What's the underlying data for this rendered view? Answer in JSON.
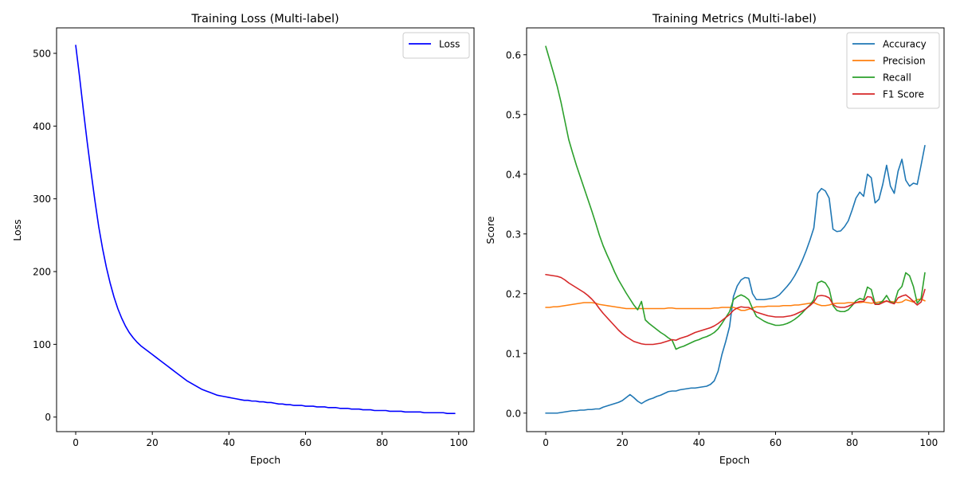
{
  "chart_data": [
    {
      "type": "line",
      "title": "Training Loss (Multi-label)",
      "xlabel": "Epoch",
      "ylabel": "Loss",
      "xlim": [
        -5,
        104
      ],
      "ylim": [
        -20,
        535
      ],
      "xticks": [
        0,
        20,
        40,
        60,
        80,
        100
      ],
      "yticks": [
        0,
        100,
        200,
        300,
        400,
        500
      ],
      "legend": "top-right",
      "grid": false,
      "x": [
        0,
        1,
        2,
        3,
        4,
        5,
        6,
        7,
        8,
        9,
        10,
        11,
        12,
        13,
        14,
        15,
        16,
        17,
        18,
        19,
        20,
        21,
        22,
        23,
        24,
        25,
        26,
        27,
        28,
        29,
        30,
        31,
        32,
        33,
        34,
        35,
        36,
        37,
        38,
        39,
        40,
        41,
        42,
        43,
        44,
        45,
        46,
        47,
        48,
        49,
        50,
        51,
        52,
        53,
        54,
        55,
        56,
        57,
        58,
        59,
        60,
        61,
        62,
        63,
        64,
        65,
        66,
        67,
        68,
        69,
        70,
        71,
        72,
        73,
        74,
        75,
        76,
        77,
        78,
        79,
        80,
        81,
        82,
        83,
        84,
        85,
        86,
        87,
        88,
        89,
        90,
        91,
        92,
        93,
        94,
        95,
        96,
        97,
        98,
        99
      ],
      "series": [
        {
          "name": "Loss",
          "color": "#0000ff",
          "values": [
            511,
            468,
            422,
            378,
            337,
            298,
            262,
            232,
            206,
            184,
            165,
            149,
            136,
            125,
            116,
            109,
            103,
            98,
            94,
            90,
            86,
            82,
            78,
            74,
            70,
            66,
            62,
            58,
            54,
            50,
            47,
            44,
            41,
            38,
            36,
            34,
            32,
            30,
            29,
            28,
            27,
            26,
            25,
            24,
            23,
            23,
            22,
            22,
            21,
            21,
            20,
            20,
            19,
            18,
            18,
            17,
            17,
            16,
            16,
            16,
            15,
            15,
            15,
            14,
            14,
            14,
            13,
            13,
            13,
            12,
            12,
            12,
            11,
            11,
            11,
            10,
            10,
            10,
            9,
            9,
            9,
            9,
            8,
            8,
            8,
            8,
            7,
            7,
            7,
            7,
            7,
            6,
            6,
            6,
            6,
            6,
            6,
            5,
            5,
            5
          ]
        }
      ]
    },
    {
      "type": "line",
      "title": "Training Metrics (Multi-label)",
      "xlabel": "Epoch",
      "ylabel": "Score",
      "xlim": [
        -5,
        104
      ],
      "ylim": [
        -0.031,
        0.645
      ],
      "xticks": [
        0,
        20,
        40,
        60,
        80,
        100
      ],
      "yticks": [
        "0.0",
        "0.1",
        "0.2",
        "0.3",
        "0.4",
        "0.5",
        "0.6"
      ],
      "legend": "top-right",
      "grid": false,
      "x": [
        0,
        1,
        2,
        3,
        4,
        5,
        6,
        7,
        8,
        9,
        10,
        11,
        12,
        13,
        14,
        15,
        16,
        17,
        18,
        19,
        20,
        21,
        22,
        23,
        24,
        25,
        26,
        27,
        28,
        29,
        30,
        31,
        32,
        33,
        34,
        35,
        36,
        37,
        38,
        39,
        40,
        41,
        42,
        43,
        44,
        45,
        46,
        47,
        48,
        49,
        50,
        51,
        52,
        53,
        54,
        55,
        56,
        57,
        58,
        59,
        60,
        61,
        62,
        63,
        64,
        65,
        66,
        67,
        68,
        69,
        70,
        71,
        72,
        73,
        74,
        75,
        76,
        77,
        78,
        79,
        80,
        81,
        82,
        83,
        84,
        85,
        86,
        87,
        88,
        89,
        90,
        91,
        92,
        93,
        94,
        95,
        96,
        97,
        98,
        99
      ],
      "series": [
        {
          "name": "Accuracy",
          "color": "#1f77b4",
          "values": [
            0.0,
            0.0,
            0.0,
            0.0,
            0.001,
            0.002,
            0.003,
            0.004,
            0.004,
            0.005,
            0.005,
            0.006,
            0.006,
            0.007,
            0.007,
            0.01,
            0.012,
            0.014,
            0.016,
            0.018,
            0.021,
            0.026,
            0.031,
            0.026,
            0.02,
            0.016,
            0.02,
            0.023,
            0.025,
            0.028,
            0.03,
            0.033,
            0.036,
            0.037,
            0.037,
            0.039,
            0.04,
            0.041,
            0.042,
            0.042,
            0.043,
            0.044,
            0.045,
            0.048,
            0.054,
            0.07,
            0.098,
            0.12,
            0.145,
            0.195,
            0.213,
            0.223,
            0.227,
            0.226,
            0.2,
            0.19,
            0.19,
            0.19,
            0.191,
            0.192,
            0.194,
            0.198,
            0.205,
            0.212,
            0.22,
            0.23,
            0.242,
            0.256,
            0.272,
            0.29,
            0.31,
            0.368,
            0.376,
            0.372,
            0.36,
            0.308,
            0.304,
            0.305,
            0.312,
            0.322,
            0.34,
            0.36,
            0.37,
            0.363,
            0.4,
            0.394,
            0.352,
            0.358,
            0.383,
            0.415,
            0.38,
            0.368,
            0.405,
            0.425,
            0.39,
            0.38,
            0.385,
            0.383,
            0.415,
            0.448
          ]
        },
        {
          "name": "Precision",
          "color": "#ff7f0e",
          "values": [
            0.177,
            0.177,
            0.178,
            0.178,
            0.179,
            0.18,
            0.181,
            0.182,
            0.183,
            0.184,
            0.185,
            0.185,
            0.185,
            0.184,
            0.182,
            0.181,
            0.18,
            0.179,
            0.178,
            0.177,
            0.176,
            0.175,
            0.175,
            0.175,
            0.175,
            0.175,
            0.175,
            0.175,
            0.175,
            0.175,
            0.175,
            0.175,
            0.176,
            0.176,
            0.175,
            0.175,
            0.175,
            0.175,
            0.175,
            0.175,
            0.175,
            0.175,
            0.175,
            0.175,
            0.176,
            0.176,
            0.177,
            0.177,
            0.177,
            0.177,
            0.175,
            0.172,
            0.172,
            0.174,
            0.176,
            0.178,
            0.178,
            0.178,
            0.179,
            0.179,
            0.179,
            0.179,
            0.18,
            0.18,
            0.18,
            0.181,
            0.181,
            0.182,
            0.183,
            0.184,
            0.185,
            0.182,
            0.18,
            0.18,
            0.181,
            0.183,
            0.184,
            0.184,
            0.184,
            0.185,
            0.185,
            0.185,
            0.185,
            0.186,
            0.185,
            0.184,
            0.185,
            0.186,
            0.187,
            0.187,
            0.187,
            0.186,
            0.185,
            0.186,
            0.19,
            0.188,
            0.186,
            0.19,
            0.191,
            0.188
          ]
        },
        {
          "name": "Recall",
          "color": "#2ca02c",
          "values": [
            0.614,
            0.592,
            0.57,
            0.547,
            0.52,
            0.489,
            0.458,
            0.436,
            0.415,
            0.396,
            0.377,
            0.358,
            0.339,
            0.319,
            0.298,
            0.28,
            0.265,
            0.251,
            0.236,
            0.223,
            0.212,
            0.201,
            0.191,
            0.181,
            0.173,
            0.187,
            0.156,
            0.15,
            0.145,
            0.14,
            0.135,
            0.131,
            0.126,
            0.122,
            0.107,
            0.11,
            0.112,
            0.115,
            0.118,
            0.121,
            0.123,
            0.126,
            0.128,
            0.131,
            0.135,
            0.141,
            0.15,
            0.16,
            0.17,
            0.19,
            0.195,
            0.198,
            0.195,
            0.19,
            0.175,
            0.162,
            0.158,
            0.154,
            0.151,
            0.149,
            0.147,
            0.147,
            0.148,
            0.15,
            0.153,
            0.157,
            0.162,
            0.168,
            0.175,
            0.181,
            0.19,
            0.218,
            0.221,
            0.218,
            0.208,
            0.18,
            0.172,
            0.17,
            0.17,
            0.173,
            0.18,
            0.188,
            0.192,
            0.19,
            0.211,
            0.207,
            0.183,
            0.183,
            0.188,
            0.197,
            0.186,
            0.184,
            0.205,
            0.212,
            0.235,
            0.23,
            0.212,
            0.184,
            0.192,
            0.235
          ]
        },
        {
          "name": "F1 Score",
          "color": "#d62728",
          "values": [
            0.232,
            0.231,
            0.23,
            0.229,
            0.227,
            0.223,
            0.218,
            0.214,
            0.21,
            0.206,
            0.202,
            0.197,
            0.191,
            0.184,
            0.175,
            0.167,
            0.16,
            0.153,
            0.146,
            0.139,
            0.133,
            0.128,
            0.124,
            0.12,
            0.118,
            0.116,
            0.115,
            0.115,
            0.115,
            0.116,
            0.117,
            0.119,
            0.121,
            0.123,
            0.122,
            0.125,
            0.127,
            0.129,
            0.132,
            0.135,
            0.137,
            0.139,
            0.141,
            0.143,
            0.146,
            0.15,
            0.155,
            0.16,
            0.165,
            0.172,
            0.176,
            0.178,
            0.177,
            0.177,
            0.173,
            0.169,
            0.167,
            0.165,
            0.163,
            0.162,
            0.161,
            0.161,
            0.161,
            0.162,
            0.163,
            0.165,
            0.168,
            0.171,
            0.175,
            0.18,
            0.186,
            0.196,
            0.197,
            0.196,
            0.193,
            0.182,
            0.178,
            0.177,
            0.177,
            0.179,
            0.182,
            0.185,
            0.187,
            0.187,
            0.195,
            0.194,
            0.182,
            0.182,
            0.185,
            0.188,
            0.185,
            0.183,
            0.193,
            0.196,
            0.198,
            0.193,
            0.187,
            0.181,
            0.186,
            0.207
          ]
        }
      ]
    }
  ]
}
